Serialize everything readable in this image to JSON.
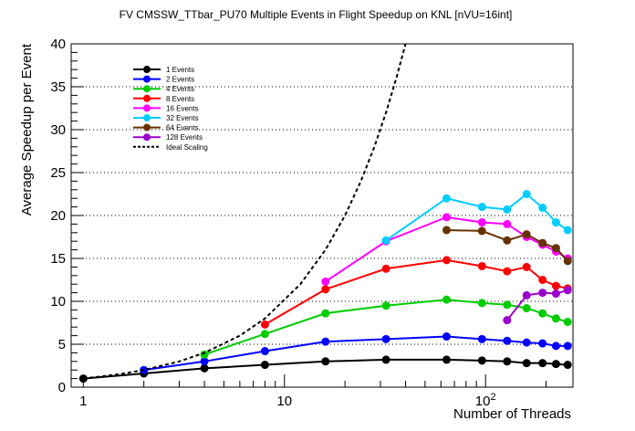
{
  "chart_data": {
    "type": "line",
    "title": "FV CMSSW_TTbar_PU70 Multiple Events in Flight Speedup on KNL [nVU=16int]",
    "xlabel": "Number of Threads",
    "ylabel": "Average Speedup per Event",
    "x_scale": "log",
    "xlim": [
      0.87,
      272
    ],
    "ylim": [
      0,
      40
    ],
    "x_ticks": [
      {
        "value": 1,
        "label": "1"
      },
      {
        "value": 10,
        "label": "10"
      },
      {
        "value": 100,
        "label": "10",
        "exp": "2"
      }
    ],
    "y_ticks": [
      0,
      5,
      10,
      15,
      20,
      25,
      30,
      35,
      40
    ],
    "grid": "horizontal dotted",
    "legend_position": "top-left",
    "series": [
      {
        "name": "1 Events",
        "color": "#000000",
        "points": [
          [
            1,
            1.0
          ],
          [
            2,
            1.6
          ],
          [
            4,
            2.2
          ],
          [
            8,
            2.6
          ],
          [
            16,
            3.0
          ],
          [
            32,
            3.2
          ],
          [
            64,
            3.2
          ],
          [
            96,
            3.1
          ],
          [
            128,
            3.0
          ],
          [
            160,
            2.8
          ],
          [
            192,
            2.8
          ],
          [
            224,
            2.7
          ],
          [
            256,
            2.6
          ]
        ]
      },
      {
        "name": "2 Events",
        "color": "#0000ff",
        "points": [
          [
            2,
            2.0
          ],
          [
            4,
            3.0
          ],
          [
            8,
            4.2
          ],
          [
            16,
            5.3
          ],
          [
            32,
            5.6
          ],
          [
            64,
            5.9
          ],
          [
            96,
            5.6
          ],
          [
            128,
            5.4
          ],
          [
            160,
            5.2
          ],
          [
            192,
            5.1
          ],
          [
            224,
            4.8
          ],
          [
            256,
            4.8
          ]
        ]
      },
      {
        "name": "4 Events",
        "color": "#00cc00",
        "points": [
          [
            4,
            3.8
          ],
          [
            8,
            6.2
          ],
          [
            16,
            8.6
          ],
          [
            32,
            9.5
          ],
          [
            64,
            10.2
          ],
          [
            96,
            9.8
          ],
          [
            128,
            9.6
          ],
          [
            160,
            9.2
          ],
          [
            192,
            8.6
          ],
          [
            224,
            8.0
          ],
          [
            256,
            7.6
          ]
        ]
      },
      {
        "name": "8 Events",
        "color": "#ff0000",
        "points": [
          [
            8,
            7.3
          ],
          [
            16,
            11.4
          ],
          [
            32,
            13.8
          ],
          [
            64,
            14.8
          ],
          [
            96,
            14.1
          ],
          [
            128,
            13.5
          ],
          [
            160,
            14.0
          ],
          [
            192,
            12.5
          ],
          [
            224,
            11.8
          ],
          [
            256,
            11.5
          ]
        ]
      },
      {
        "name": "16 Events",
        "color": "#ff00ff",
        "points": [
          [
            16,
            12.3
          ],
          [
            32,
            17.0
          ],
          [
            64,
            19.8
          ],
          [
            96,
            19.2
          ],
          [
            128,
            19.0
          ],
          [
            160,
            17.5
          ],
          [
            192,
            16.6
          ],
          [
            224,
            15.8
          ],
          [
            256,
            15.0
          ]
        ]
      },
      {
        "name": "32 Events",
        "color": "#00ccff",
        "points": [
          [
            32,
            17.1
          ],
          [
            64,
            22.0
          ],
          [
            96,
            21.0
          ],
          [
            128,
            20.7
          ],
          [
            160,
            22.5
          ],
          [
            192,
            20.9
          ],
          [
            224,
            19.2
          ],
          [
            256,
            18.3
          ]
        ]
      },
      {
        "name": "64 Events",
        "color": "#663300",
        "points": [
          [
            64,
            18.3
          ],
          [
            96,
            18.2
          ],
          [
            128,
            17.1
          ],
          [
            160,
            17.8
          ],
          [
            192,
            16.8
          ],
          [
            224,
            16.2
          ],
          [
            256,
            14.7
          ]
        ]
      },
      {
        "name": "128 Events",
        "color": "#9900cc",
        "points": [
          [
            128,
            7.8
          ],
          [
            160,
            10.7
          ],
          [
            192,
            11.0
          ],
          [
            224,
            10.9
          ],
          [
            256,
            11.3
          ]
        ]
      },
      {
        "name": "Ideal Scaling",
        "color": "#000000",
        "dashed": true,
        "points": [
          [
            1,
            1
          ],
          [
            1.5,
            1.5
          ],
          [
            2,
            2
          ],
          [
            3,
            3
          ],
          [
            4,
            4
          ],
          [
            6,
            6
          ],
          [
            8,
            8
          ],
          [
            12,
            12
          ],
          [
            16,
            16
          ],
          [
            20,
            20
          ],
          [
            24,
            24
          ],
          [
            28,
            28
          ],
          [
            32,
            32
          ],
          [
            36,
            36
          ],
          [
            40,
            40
          ]
        ]
      }
    ]
  }
}
